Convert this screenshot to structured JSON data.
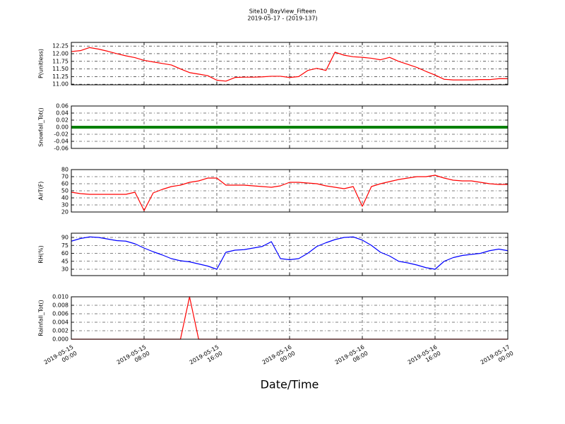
{
  "chart_data": [
    {
      "type": "line",
      "title": "Site10_BayView_Fifteen",
      "subtitle": "2019-05-17 - (2019-137)",
      "y_label": "P(unitless)",
      "color": "#ff0000",
      "grid": true,
      "x": [
        "2019-05-15 00:00",
        "2019-05-15 01:00",
        "2019-05-15 02:00",
        "2019-05-15 03:00",
        "2019-05-15 04:00",
        "2019-05-15 05:00",
        "2019-05-15 06:00",
        "2019-05-15 07:00",
        "2019-05-15 08:00",
        "2019-05-15 09:00",
        "2019-05-15 10:00",
        "2019-05-15 11:00",
        "2019-05-15 12:00",
        "2019-05-15 13:00",
        "2019-05-15 14:00",
        "2019-05-15 15:00",
        "2019-05-15 16:00",
        "2019-05-15 17:00",
        "2019-05-15 18:00",
        "2019-05-15 19:00",
        "2019-05-15 20:00",
        "2019-05-15 21:00",
        "2019-05-15 22:00",
        "2019-05-15 23:00",
        "2019-05-16 00:00",
        "2019-05-16 01:00",
        "2019-05-16 02:00",
        "2019-05-16 03:00",
        "2019-05-16 04:00",
        "2019-05-16 05:00",
        "2019-05-16 06:00",
        "2019-05-16 07:00",
        "2019-05-16 08:00",
        "2019-05-16 09:00",
        "2019-05-16 10:00",
        "2019-05-16 11:00",
        "2019-05-16 12:00",
        "2019-05-16 13:00",
        "2019-05-16 14:00",
        "2019-05-16 15:00",
        "2019-05-16 16:00",
        "2019-05-16 17:00",
        "2019-05-16 18:00",
        "2019-05-16 19:00",
        "2019-05-16 20:00",
        "2019-05-16 21:00",
        "2019-05-16 22:00",
        "2019-05-16 23:00",
        "2019-05-17 00:00"
      ],
      "values": [
        12.07,
        12.1,
        12.2,
        12.15,
        12.08,
        12.0,
        11.93,
        11.87,
        11.78,
        11.73,
        11.68,
        11.63,
        11.5,
        11.38,
        11.33,
        11.28,
        11.13,
        11.1,
        11.22,
        11.23,
        11.23,
        11.24,
        11.26,
        11.26,
        11.22,
        11.25,
        11.45,
        11.52,
        11.45,
        12.05,
        11.95,
        11.9,
        11.88,
        11.85,
        11.8,
        11.88,
        11.75,
        11.65,
        11.55,
        11.42,
        11.3,
        11.16,
        11.14,
        11.14,
        11.14,
        11.15,
        11.15,
        11.18,
        11.18
      ],
      "xlim": [
        "2019-05-15 00:00",
        "2019-05-17 00:00"
      ],
      "xticks": [
        "2019-05-15 00:00",
        "2019-05-15 08:00",
        "2019-05-15 16:00",
        "2019-05-16 00:00",
        "2019-05-16 08:00",
        "2019-05-16 16:00",
        "2019-05-17 00:00"
      ],
      "ylim": [
        10.98,
        12.37
      ],
      "yticks": [
        {
          "value": 11.0,
          "label": "11.00"
        },
        {
          "value": 11.25,
          "label": "11.25"
        },
        {
          "value": 11.5,
          "label": "11.50"
        },
        {
          "value": 11.75,
          "label": "11.75"
        },
        {
          "value": 12.0,
          "label": "12.00"
        },
        {
          "value": 12.25,
          "label": "12.25"
        }
      ]
    },
    {
      "type": "line",
      "y_label": "Snowfall_Tot()",
      "color": "#008000",
      "grid": true,
      "x": [
        "2019-05-15 00:00",
        "2019-05-15 01:00",
        "2019-05-15 02:00",
        "2019-05-15 03:00",
        "2019-05-15 04:00",
        "2019-05-15 05:00",
        "2019-05-15 06:00",
        "2019-05-15 07:00",
        "2019-05-15 08:00",
        "2019-05-15 09:00",
        "2019-05-15 10:00",
        "2019-05-15 11:00",
        "2019-05-15 12:00",
        "2019-05-15 13:00",
        "2019-05-15 14:00",
        "2019-05-15 15:00",
        "2019-05-15 16:00",
        "2019-05-15 17:00",
        "2019-05-15 18:00",
        "2019-05-15 19:00",
        "2019-05-15 20:00",
        "2019-05-15 21:00",
        "2019-05-15 22:00",
        "2019-05-15 23:00",
        "2019-05-16 00:00",
        "2019-05-16 01:00",
        "2019-05-16 02:00",
        "2019-05-16 03:00",
        "2019-05-16 04:00",
        "2019-05-16 05:00",
        "2019-05-16 06:00",
        "2019-05-16 07:00",
        "2019-05-16 08:00",
        "2019-05-16 09:00",
        "2019-05-16 10:00",
        "2019-05-16 11:00",
        "2019-05-16 12:00",
        "2019-05-16 13:00",
        "2019-05-16 14:00",
        "2019-05-16 15:00",
        "2019-05-16 16:00",
        "2019-05-16 17:00",
        "2019-05-16 18:00",
        "2019-05-16 19:00",
        "2019-05-16 20:00",
        "2019-05-16 21:00",
        "2019-05-16 22:00",
        "2019-05-16 23:00",
        "2019-05-17 00:00"
      ],
      "values": [
        0,
        0,
        0,
        0,
        0,
        0,
        0,
        0,
        0,
        0,
        0,
        0,
        0,
        0,
        0,
        0,
        0,
        0,
        0,
        0,
        0,
        0,
        0,
        0,
        0,
        0,
        0,
        0,
        0,
        0,
        0,
        0,
        0,
        0,
        0,
        0,
        0,
        0,
        0,
        0,
        0,
        0,
        0,
        0,
        0,
        0,
        0,
        0,
        0
      ],
      "xlim": [
        "2019-05-15 00:00",
        "2019-05-17 00:00"
      ],
      "xticks": [
        "2019-05-15 00:00",
        "2019-05-15 08:00",
        "2019-05-15 16:00",
        "2019-05-16 00:00",
        "2019-05-16 08:00",
        "2019-05-16 16:00",
        "2019-05-17 00:00"
      ],
      "ylim": [
        -0.06,
        0.06
      ],
      "yticks": [
        -0.06,
        -0.04,
        -0.02,
        {
          "value": 0,
          "label": "0.00"
        },
        0.02,
        0.04,
        0.06
      ]
    },
    {
      "type": "line",
      "y_label": "AirT(F)",
      "color": "#ff0000",
      "grid": true,
      "x": [
        "2019-05-15 00:00",
        "2019-05-15 01:00",
        "2019-05-15 02:00",
        "2019-05-15 03:00",
        "2019-05-15 04:00",
        "2019-05-15 05:00",
        "2019-05-15 06:00",
        "2019-05-15 07:00",
        "2019-05-15 08:00",
        "2019-05-15 09:00",
        "2019-05-15 10:00",
        "2019-05-15 11:00",
        "2019-05-15 12:00",
        "2019-05-15 13:00",
        "2019-05-15 14:00",
        "2019-05-15 15:00",
        "2019-05-15 16:00",
        "2019-05-15 17:00",
        "2019-05-15 18:00",
        "2019-05-15 19:00",
        "2019-05-15 20:00",
        "2019-05-15 21:00",
        "2019-05-15 22:00",
        "2019-05-15 23:00",
        "2019-05-16 00:00",
        "2019-05-16 01:00",
        "2019-05-16 02:00",
        "2019-05-16 03:00",
        "2019-05-16 04:00",
        "2019-05-16 05:00",
        "2019-05-16 06:00",
        "2019-05-16 07:00",
        "2019-05-16 08:00",
        "2019-05-16 09:00",
        "2019-05-16 10:00",
        "2019-05-16 11:00",
        "2019-05-16 12:00",
        "2019-05-16 13:00",
        "2019-05-16 14:00",
        "2019-05-16 15:00",
        "2019-05-16 16:00",
        "2019-05-16 17:00",
        "2019-05-16 18:00",
        "2019-05-16 19:00",
        "2019-05-16 20:00",
        "2019-05-16 21:00",
        "2019-05-16 22:00",
        "2019-05-16 23:00",
        "2019-05-17 00:00"
      ],
      "values": [
        48,
        46,
        45,
        45,
        45,
        45,
        45,
        48,
        22,
        47,
        52,
        56,
        58,
        62,
        64,
        68,
        68,
        58,
        58,
        58,
        57,
        56,
        55,
        57,
        62,
        62,
        61,
        60,
        57,
        55,
        53,
        56,
        28,
        56,
        60,
        63,
        66,
        68,
        70,
        70,
        72,
        68,
        65,
        64,
        64,
        62,
        60,
        59,
        59
      ],
      "xlim": [
        "2019-05-15 00:00",
        "2019-05-17 00:00"
      ],
      "xticks": [
        "2019-05-15 00:00",
        "2019-05-15 08:00",
        "2019-05-15 16:00",
        "2019-05-16 00:00",
        "2019-05-16 08:00",
        "2019-05-16 16:00",
        "2019-05-17 00:00"
      ],
      "ylim": [
        20,
        80
      ],
      "yticks": [
        20,
        30,
        40,
        50,
        60,
        70,
        80
      ]
    },
    {
      "type": "line",
      "y_label": "RH(%)",
      "color": "#0000ff",
      "grid": true,
      "x": [
        "2019-05-15 00:00",
        "2019-05-15 01:00",
        "2019-05-15 02:00",
        "2019-05-15 03:00",
        "2019-05-15 04:00",
        "2019-05-15 05:00",
        "2019-05-15 06:00",
        "2019-05-15 07:00",
        "2019-05-15 08:00",
        "2019-05-15 09:00",
        "2019-05-15 10:00",
        "2019-05-15 11:00",
        "2019-05-15 12:00",
        "2019-05-15 13:00",
        "2019-05-15 14:00",
        "2019-05-15 15:00",
        "2019-05-15 16:00",
        "2019-05-15 17:00",
        "2019-05-15 18:00",
        "2019-05-15 19:00",
        "2019-05-15 20:00",
        "2019-05-15 21:00",
        "2019-05-15 22:00",
        "2019-05-15 23:00",
        "2019-05-16 00:00",
        "2019-05-16 01:00",
        "2019-05-16 02:00",
        "2019-05-16 03:00",
        "2019-05-16 04:00",
        "2019-05-16 05:00",
        "2019-05-16 06:00",
        "2019-05-16 07:00",
        "2019-05-16 08:00",
        "2019-05-16 09:00",
        "2019-05-16 10:00",
        "2019-05-16 11:00",
        "2019-05-16 12:00",
        "2019-05-16 13:00",
        "2019-05-16 14:00",
        "2019-05-16 15:00",
        "2019-05-16 16:00",
        "2019-05-16 17:00",
        "2019-05-16 18:00",
        "2019-05-16 19:00",
        "2019-05-16 20:00",
        "2019-05-16 21:00",
        "2019-05-16 22:00",
        "2019-05-16 23:00",
        "2019-05-17 00:00"
      ],
      "values": [
        83,
        88,
        91,
        90,
        87,
        84,
        83,
        78,
        70,
        63,
        57,
        50,
        46,
        44,
        40,
        36,
        30,
        62,
        66,
        67,
        70,
        73,
        82,
        50,
        48,
        50,
        60,
        73,
        80,
        86,
        90,
        91,
        85,
        75,
        62,
        55,
        45,
        42,
        38,
        33,
        30,
        45,
        52,
        56,
        58,
        60,
        65,
        68,
        65
      ],
      "xlim": [
        "2019-05-15 00:00",
        "2019-05-17 00:00"
      ],
      "xticks": [
        "2019-05-15 00:00",
        "2019-05-15 08:00",
        "2019-05-15 16:00",
        "2019-05-16 00:00",
        "2019-05-16 08:00",
        "2019-05-16 16:00",
        "2019-05-17 00:00"
      ],
      "ylim": [
        18,
        98
      ],
      "yticks": [
        30,
        45,
        60,
        75,
        90
      ]
    },
    {
      "type": "line",
      "y_label": "Rainfall_Tot()",
      "x_label": "Date/Time",
      "color": "#ff0000",
      "grid": true,
      "x": [
        "2019-05-15 00:00",
        "2019-05-15 01:00",
        "2019-05-15 02:00",
        "2019-05-15 03:00",
        "2019-05-15 04:00",
        "2019-05-15 05:00",
        "2019-05-15 06:00",
        "2019-05-15 07:00",
        "2019-05-15 08:00",
        "2019-05-15 09:00",
        "2019-05-15 10:00",
        "2019-05-15 11:00",
        "2019-05-15 12:00",
        "2019-05-15 13:00",
        "2019-05-15 14:00",
        "2019-05-15 15:00",
        "2019-05-15 16:00",
        "2019-05-15 17:00",
        "2019-05-15 18:00",
        "2019-05-15 19:00",
        "2019-05-15 20:00",
        "2019-05-15 21:00",
        "2019-05-15 22:00",
        "2019-05-15 23:00",
        "2019-05-16 00:00",
        "2019-05-16 01:00",
        "2019-05-16 02:00",
        "2019-05-16 03:00",
        "2019-05-16 04:00",
        "2019-05-16 05:00",
        "2019-05-16 06:00",
        "2019-05-16 07:00",
        "2019-05-16 08:00",
        "2019-05-16 09:00",
        "2019-05-16 10:00",
        "2019-05-16 11:00",
        "2019-05-16 12:00",
        "2019-05-16 13:00",
        "2019-05-16 14:00",
        "2019-05-16 15:00",
        "2019-05-16 16:00",
        "2019-05-16 17:00",
        "2019-05-16 18:00",
        "2019-05-16 19:00",
        "2019-05-16 20:00",
        "2019-05-16 21:00",
        "2019-05-16 22:00",
        "2019-05-16 23:00",
        "2019-05-17 00:00"
      ],
      "values": [
        0,
        0,
        0,
        0,
        0,
        0,
        0,
        0,
        0,
        0,
        0,
        0,
        0,
        0.01,
        0,
        0,
        0,
        0,
        0,
        0,
        0,
        0,
        0,
        0,
        0,
        0,
        0,
        0,
        0,
        0,
        0,
        0,
        0,
        0,
        0,
        0,
        0,
        0,
        0,
        0,
        0,
        0,
        0,
        0,
        0,
        0,
        0,
        0,
        0
      ],
      "xlim": [
        "2019-05-15 00:00",
        "2019-05-17 00:00"
      ],
      "xticks": [
        "2019-05-15 00:00",
        "2019-05-15 08:00",
        "2019-05-15 16:00",
        "2019-05-16 00:00",
        "2019-05-16 08:00",
        "2019-05-16 16:00",
        "2019-05-17 00:00"
      ],
      "ylim": [
        0,
        0.01
      ],
      "yticks": [
        {
          "value": 0,
          "label": "0.000"
        },
        {
          "value": 0.002,
          "label": "0.002"
        },
        {
          "value": 0.004,
          "label": "0.004"
        },
        {
          "value": 0.006,
          "label": "0.006"
        },
        {
          "value": 0.008,
          "label": "0.008"
        },
        {
          "value": 0.01,
          "label": "0.010"
        }
      ]
    }
  ]
}
